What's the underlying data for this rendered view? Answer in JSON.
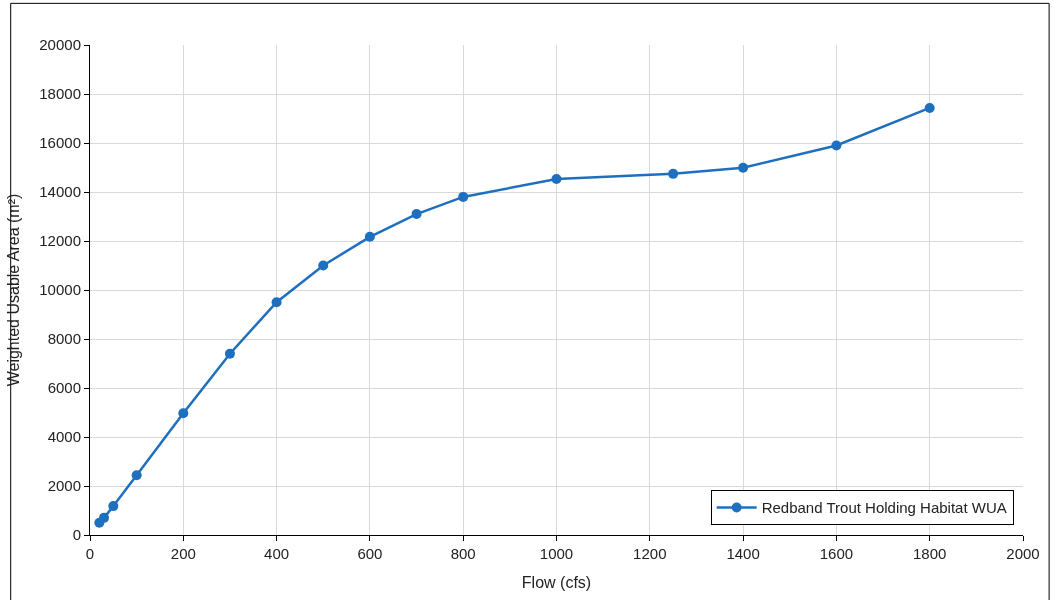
{
  "chart_data": {
    "type": "line",
    "xlabel": "Flow (cfs)",
    "ylabel": "Weighted Usable Area (m²)",
    "x": [
      20,
      30,
      50,
      100,
      200,
      300,
      400,
      500,
      600,
      700,
      800,
      1000,
      1250,
      1400,
      1600,
      1800
    ],
    "series": [
      {
        "name": "Redband Trout Holding Habitat WUA",
        "color": "#1f6fbf",
        "values": [
          500,
          700,
          1180,
          2440,
          4970,
          7400,
          9500,
          11000,
          12170,
          13100,
          13800,
          14530,
          14740,
          14990,
          15900,
          17430
        ]
      }
    ],
    "xlim": [
      0,
      2000
    ],
    "xticks": [
      0,
      200,
      400,
      600,
      800,
      1000,
      1200,
      1400,
      1600,
      1800,
      2000
    ],
    "ylim": [
      0,
      20000
    ],
    "yticks": [
      0,
      2000,
      4000,
      6000,
      8000,
      10000,
      12000,
      14000,
      16000,
      18000,
      20000
    ],
    "grid": true,
    "legend": "bottom right",
    "marker": "circle",
    "line_style": "solid"
  }
}
